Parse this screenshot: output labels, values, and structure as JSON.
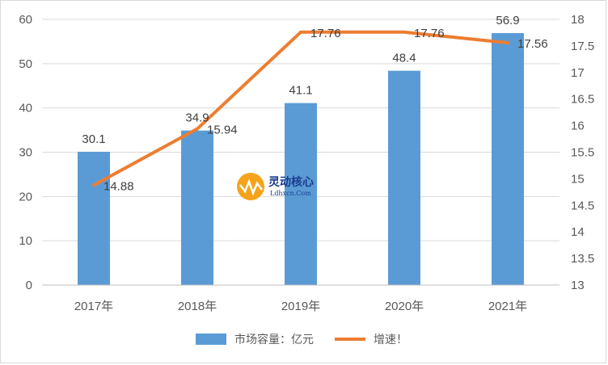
{
  "chart_data": {
    "type": "bar",
    "categories": [
      "2017年",
      "2018年",
      "2019年",
      "2020年",
      "2021年"
    ],
    "series": [
      {
        "name": "市场容量：亿元",
        "type": "bar",
        "axis": "left",
        "color": "#5b9bd5",
        "values": [
          30.1,
          34.9,
          41.1,
          48.4,
          56.9
        ],
        "labels": [
          "30.1",
          "34.9",
          "41.1",
          "48.4",
          "56.9"
        ]
      },
      {
        "name": "增速！",
        "type": "line",
        "axis": "right",
        "color": "#ed7d31",
        "values": [
          14.88,
          15.94,
          17.76,
          17.76,
          17.56
        ],
        "labels": [
          "14.88",
          "15.94",
          "17.76",
          "17.76",
          "17.56"
        ]
      }
    ],
    "y_left": {
      "ylim": [
        0,
        60
      ],
      "ticks": [
        "0",
        "10",
        "20",
        "30",
        "40",
        "50",
        "60"
      ]
    },
    "y_right": {
      "ylim": [
        13,
        18
      ],
      "ticks": [
        "13",
        "13.5",
        "14",
        "14.5",
        "15",
        "15.5",
        "16",
        "16.5",
        "17",
        "17.5",
        "18"
      ]
    },
    "grid": true,
    "legend_position": "bottom"
  },
  "watermark": {
    "title": "灵动核心",
    "subtitle": "Ldhxcn.Com"
  }
}
